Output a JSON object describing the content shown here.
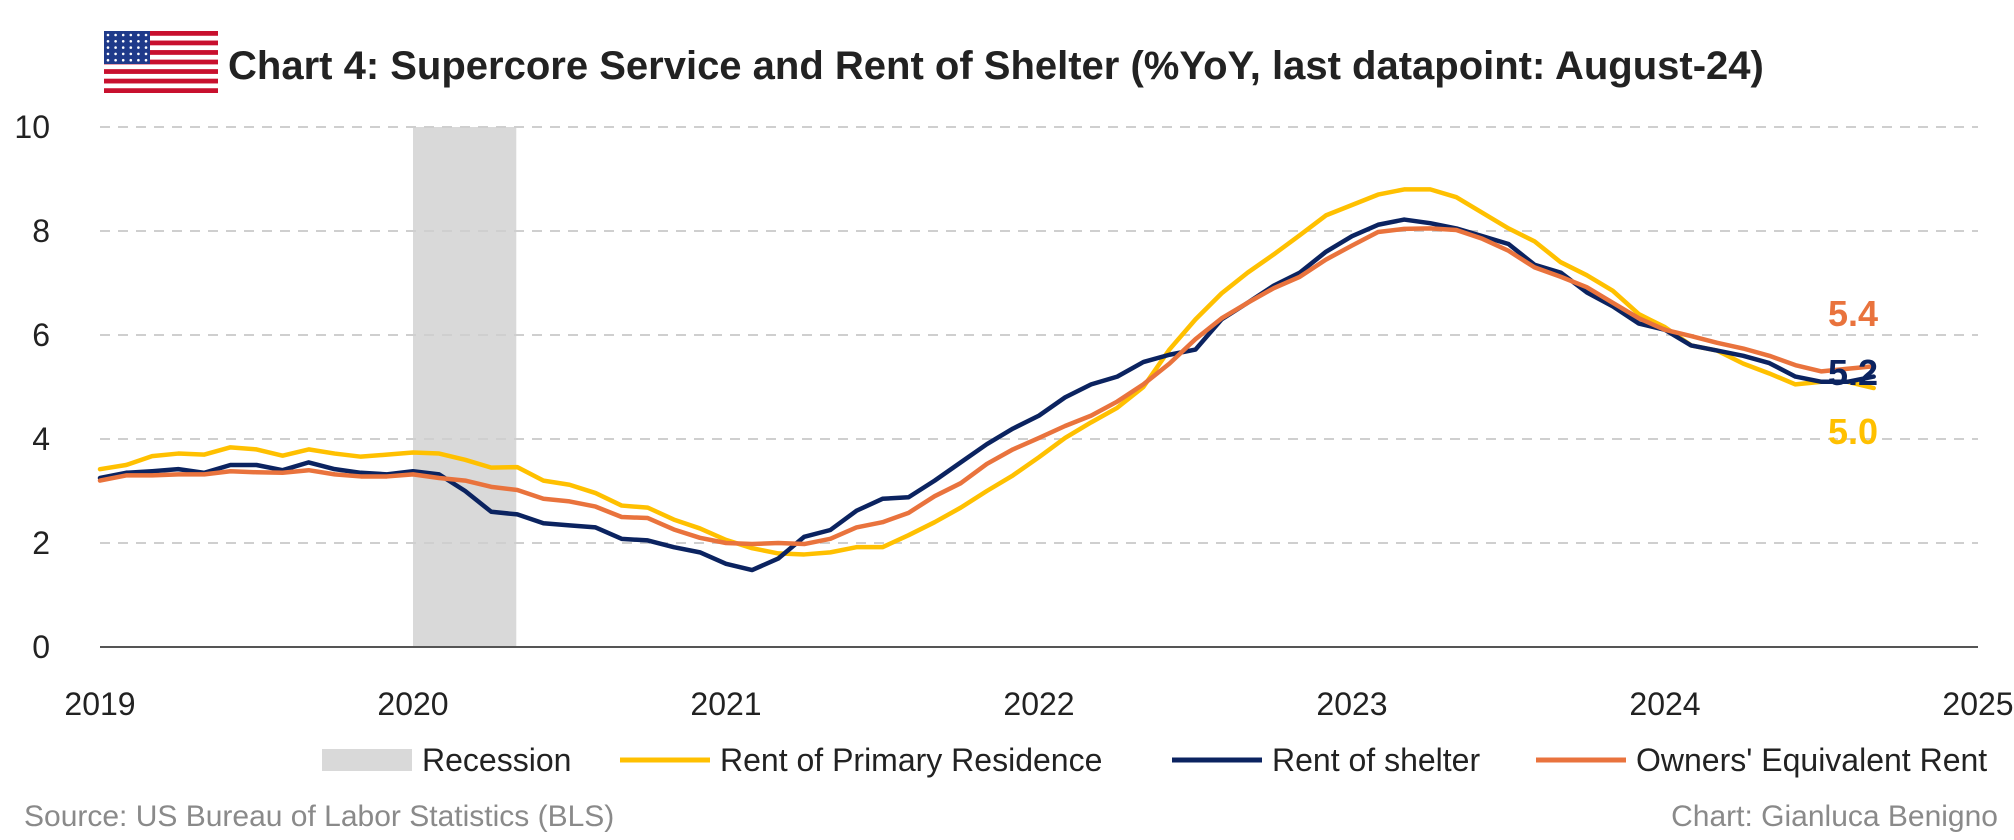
{
  "header": {
    "title": "Chart 4: Supercore Service and Rent of Shelter (%YoY, last datapoint: August-24)",
    "flag_icon": "us-flag-icon"
  },
  "footer": {
    "source": "Source: US Bureau of Labor Statistics (BLS)",
    "credit": "Chart: Gianluca Benigno"
  },
  "chart_data": {
    "type": "line",
    "title": "Chart 4: Supercore Service and Rent of Shelter (%YoY, last datapoint: August-24)",
    "xlabel": "",
    "ylabel": "",
    "xlim": [
      2019,
      2025
    ],
    "ylim": [
      0,
      10
    ],
    "x_ticks": [
      "2019",
      "2020",
      "2021",
      "2022",
      "2023",
      "2024",
      "2025"
    ],
    "y_ticks": [
      "0",
      "2",
      "4",
      "6",
      "8",
      "10"
    ],
    "grid": "horizontal dashed",
    "legend_position": "bottom",
    "recession": {
      "name": "Recession",
      "start": 2020.0,
      "end": 2020.33,
      "color": "#d9d9d9"
    },
    "x_start": 2019.0,
    "x_step_months": 1,
    "series": [
      {
        "name": "Rent of Primary Residence",
        "color": "#ffc000",
        "end_label": "5.0",
        "values": [
          3.42,
          3.5,
          3.67,
          3.72,
          3.7,
          3.84,
          3.8,
          3.68,
          3.8,
          3.72,
          3.66,
          3.7,
          3.74,
          3.72,
          3.6,
          3.45,
          3.46,
          3.2,
          3.12,
          2.96,
          2.72,
          2.68,
          2.45,
          2.28,
          2.06,
          1.9,
          1.8,
          1.78,
          1.82,
          1.92,
          1.92,
          2.15,
          2.4,
          2.68,
          3.0,
          3.3,
          3.65,
          4.02,
          4.32,
          4.6,
          5.0,
          5.72,
          6.3,
          6.8,
          7.2,
          7.55,
          7.92,
          8.3,
          8.5,
          8.7,
          8.8,
          8.8,
          8.65,
          8.35,
          8.05,
          7.8,
          7.4,
          7.15,
          6.85,
          6.4,
          6.15,
          5.8,
          5.7,
          5.45,
          5.26,
          5.05,
          5.1,
          5.1,
          4.98
        ]
      },
      {
        "name": "Rent of shelter",
        "color": "#0b2360",
        "end_label": "5.2",
        "values": [
          3.25,
          3.35,
          3.38,
          3.42,
          3.35,
          3.5,
          3.5,
          3.4,
          3.55,
          3.42,
          3.35,
          3.32,
          3.38,
          3.32,
          3.0,
          2.6,
          2.55,
          2.38,
          2.34,
          2.3,
          2.08,
          2.05,
          1.92,
          1.82,
          1.6,
          1.48,
          1.7,
          2.12,
          2.25,
          2.62,
          2.85,
          2.88,
          3.2,
          3.55,
          3.9,
          4.2,
          4.45,
          4.8,
          5.05,
          5.2,
          5.48,
          5.62,
          5.72,
          6.3,
          6.62,
          6.95,
          7.2,
          7.6,
          7.9,
          8.12,
          8.22,
          8.15,
          8.05,
          7.9,
          7.75,
          7.35,
          7.2,
          6.82,
          6.55,
          6.22,
          6.1,
          5.8,
          5.7,
          5.6,
          5.46,
          5.2,
          5.1,
          5.1,
          5.2
        ]
      },
      {
        "name": "Owners' Equivalent Rent",
        "color": "#e9733d",
        "end_label": "5.4",
        "values": [
          3.2,
          3.3,
          3.3,
          3.32,
          3.32,
          3.38,
          3.36,
          3.35,
          3.4,
          3.32,
          3.28,
          3.28,
          3.32,
          3.25,
          3.2,
          3.08,
          3.02,
          2.85,
          2.8,
          2.7,
          2.5,
          2.48,
          2.26,
          2.1,
          2.0,
          1.98,
          2.0,
          1.98,
          2.08,
          2.3,
          2.4,
          2.58,
          2.9,
          3.15,
          3.52,
          3.8,
          4.02,
          4.25,
          4.45,
          4.72,
          5.05,
          5.45,
          5.92,
          6.32,
          6.62,
          6.9,
          7.12,
          7.45,
          7.72,
          7.98,
          8.04,
          8.05,
          8.02,
          7.85,
          7.62,
          7.3,
          7.12,
          6.92,
          6.62,
          6.32,
          6.1,
          5.98,
          5.85,
          5.74,
          5.6,
          5.42,
          5.3,
          5.35,
          5.4
        ]
      }
    ]
  }
}
